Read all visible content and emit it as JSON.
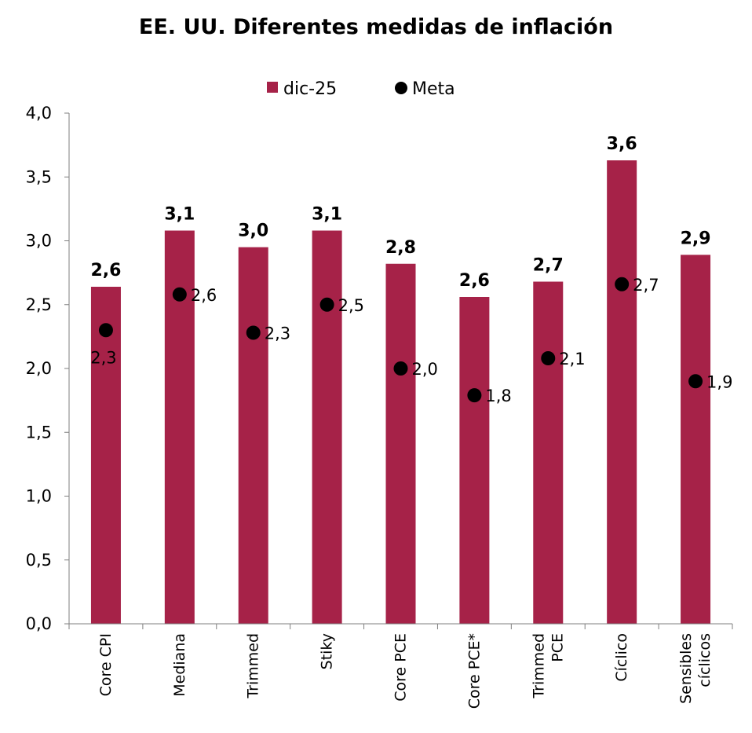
{
  "chart_data": {
    "type": "bar",
    "title": "EE. UU. Diferentes medidas de inflación",
    "categories": [
      "Core CPI",
      "Mediana",
      "Trimmed",
      "Stiky",
      "Core PCE",
      "Core PCE*",
      "Trimmed PCE",
      "Cíclico",
      "Sensibles cíclicos"
    ],
    "category_lines": [
      [
        "Core CPI"
      ],
      [
        "Mediana"
      ],
      [
        "Trimmed"
      ],
      [
        "Stiky"
      ],
      [
        "Core PCE"
      ],
      [
        "Core PCE*"
      ],
      [
        "Trimmed",
        "PCE"
      ],
      [
        "Cíclico"
      ],
      [
        "Sensibles",
        "cíclicos"
      ]
    ],
    "series": [
      {
        "name": "dic-25",
        "kind": "bar",
        "color": "#A62248",
        "values": [
          2.64,
          3.08,
          2.95,
          3.08,
          2.82,
          2.56,
          2.68,
          3.63,
          2.89
        ],
        "labels": [
          "2,6",
          "3,1",
          "3,0",
          "3,1",
          "2,8",
          "2,6",
          "2,7",
          "3,6",
          "2,9"
        ]
      },
      {
        "name": "Meta",
        "kind": "scatter",
        "color": "#000000",
        "values": [
          2.3,
          2.58,
          2.28,
          2.5,
          2.0,
          1.79,
          2.08,
          2.66,
          1.9
        ],
        "labels": [
          "2,3",
          "2,6",
          "2,3",
          "2,5",
          "2,0",
          "1,8",
          "2,1",
          "2,7",
          "1,9"
        ]
      }
    ],
    "ylim": [
      0,
      4.0
    ],
    "yticks": [
      0,
      0.5,
      1.0,
      1.5,
      2.0,
      2.5,
      3.0,
      3.5,
      4.0
    ],
    "ytick_labels": [
      "0,0",
      "0,5",
      "1,0",
      "1,5",
      "2,0",
      "2,5",
      "3,0",
      "3,5",
      "4,0"
    ],
    "legend_position": "top-center",
    "grid": false
  }
}
